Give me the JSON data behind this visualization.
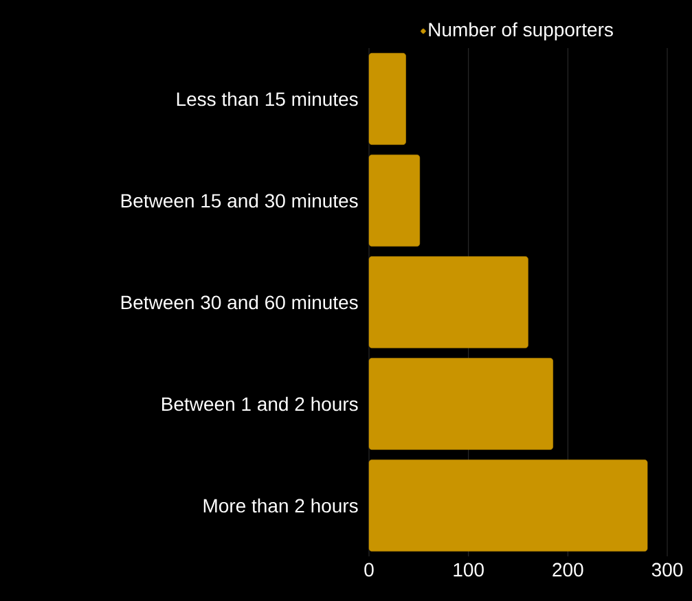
{
  "chart_data": {
    "type": "bar",
    "orientation": "horizontal",
    "categories": [
      "Less than 15 minutes",
      "Between 15 and 30 minutes",
      "Between 30 and 60 minutes",
      "Between 1 and 2 hours",
      "More than 2 hours"
    ],
    "series": [
      {
        "name": "Number of supporters",
        "color": "#c99400",
        "values": [
          37,
          51,
          160,
          185,
          280
        ]
      }
    ],
    "xlim": [
      0,
      300
    ],
    "xticks": [
      0,
      100,
      200,
      300
    ],
    "grid": "x",
    "legend": "top"
  }
}
